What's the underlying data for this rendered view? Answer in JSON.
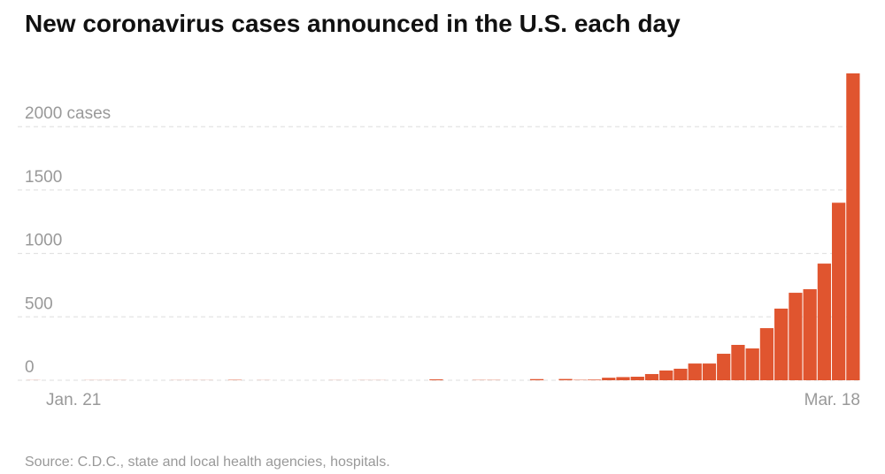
{
  "chart_data": {
    "type": "bar",
    "title": "New coronavirus cases announced in the U.S. each day",
    "source": "Source: C.D.C., state and local health agencies, hospitals.",
    "categories": [
      "Jan. 21",
      null,
      null,
      null,
      null,
      null,
      null,
      null,
      null,
      null,
      null,
      null,
      null,
      null,
      null,
      null,
      null,
      null,
      null,
      null,
      null,
      null,
      null,
      null,
      null,
      null,
      null,
      null,
      null,
      null,
      null,
      null,
      null,
      null,
      null,
      null,
      null,
      null,
      null,
      null,
      null,
      null,
      null,
      null,
      null,
      null,
      null,
      null,
      null,
      null,
      null,
      null,
      null,
      null,
      null,
      null,
      null,
      "Mar. 18"
    ],
    "values": [
      1,
      0,
      0,
      0,
      1,
      1,
      1,
      0,
      0,
      0,
      1,
      1,
      1,
      0,
      3,
      0,
      1,
      0,
      0,
      0,
      0,
      1,
      0,
      1,
      1,
      0,
      0,
      0,
      7,
      0,
      0,
      2,
      2,
      0,
      0,
      9,
      0,
      10,
      3,
      5,
      20,
      25,
      28,
      49,
      77,
      91,
      132,
      132,
      209,
      279,
      251,
      411,
      565,
      690,
      718,
      920,
      1400,
      2420
    ],
    "color": "#e0552f",
    "ylim": [
      0,
      2420
    ],
    "yticks": [
      0,
      500,
      1000,
      1500,
      {
        "value": 2000,
        "label": "2000 cases"
      }
    ],
    "grid": true
  }
}
